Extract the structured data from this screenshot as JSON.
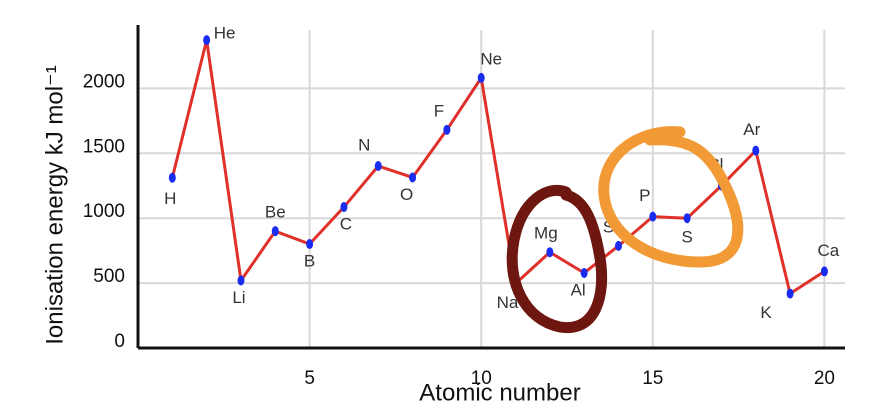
{
  "chart_data": {
    "type": "line",
    "x_label": "Atomic number",
    "y_label": "Ionisation energy kJ mol⁻¹",
    "x": [
      1,
      2,
      3,
      4,
      5,
      6,
      7,
      8,
      9,
      10,
      11,
      12,
      13,
      14,
      15,
      16,
      17,
      18,
      19,
      20
    ],
    "point_labels": [
      "H",
      "He",
      "Li",
      "Be",
      "B",
      "C",
      "N",
      "O",
      "F",
      "Ne",
      "Na",
      "Mg",
      "Al",
      "Si",
      "P",
      "S",
      "Cl",
      "Ar",
      "K",
      "Ca"
    ],
    "series": [
      {
        "color": "#e0302a",
        "marker_color": "#1a2cf0",
        "values": [
          1312,
          2372,
          520,
          900,
          801,
          1086,
          1402,
          1314,
          1681,
          2081,
          496,
          738,
          578,
          787,
          1012,
          1000,
          1251,
          1521,
          419,
          590
        ]
      }
    ],
    "xlim": [
      0,
      20.6
    ],
    "ylim": [
      0,
      2450
    ],
    "xticks": [
      5,
      10,
      15,
      20
    ],
    "yticks": [
      0,
      500,
      1000,
      1500,
      2000
    ],
    "grid": true
  }
}
